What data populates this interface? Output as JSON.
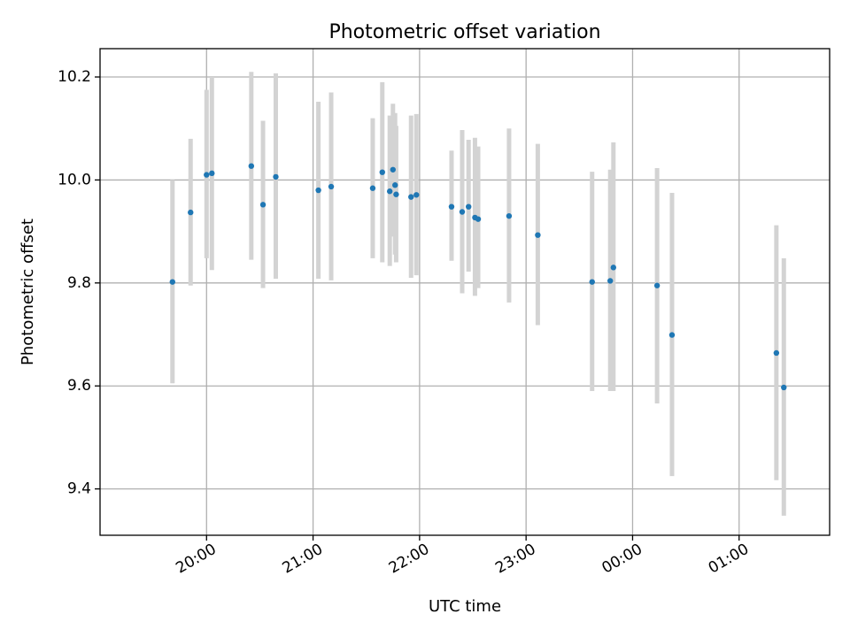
{
  "chart_data": {
    "type": "scatter",
    "title": "Photometric offset variation",
    "xlabel": "UTC time",
    "ylabel": "Photometric offset",
    "x_unit": "UTC time, hours after 19:00 (values past 24 are after midnight)",
    "xlim": [
      19.0,
      25.85
    ],
    "ylim": [
      9.31,
      10.255
    ],
    "grid": true,
    "x_ticks": [
      {
        "value": 20,
        "label": "20:00"
      },
      {
        "value": 21,
        "label": "21:00"
      },
      {
        "value": 22,
        "label": "22:00"
      },
      {
        "value": 23,
        "label": "23:00"
      },
      {
        "value": 24,
        "label": "00:00"
      },
      {
        "value": 25,
        "label": "01:00"
      }
    ],
    "y_ticks": [
      {
        "value": 9.4,
        "label": "9.4"
      },
      {
        "value": 9.6,
        "label": "9.6"
      },
      {
        "value": 9.8,
        "label": "9.8"
      },
      {
        "value": 10.0,
        "label": "10.0"
      },
      {
        "value": 10.2,
        "label": "10.2"
      }
    ],
    "point_color": "#1f77b4",
    "errorbar_color": "#d3d3d3",
    "series": [
      {
        "points": [
          {
            "x": 19.68,
            "y": 9.802,
            "lo": 9.605,
            "hi": 10.0
          },
          {
            "x": 19.85,
            "y": 9.937,
            "lo": 9.795,
            "hi": 10.08
          },
          {
            "x": 20.0,
            "y": 10.01,
            "lo": 9.848,
            "hi": 10.175
          },
          {
            "x": 20.05,
            "y": 10.013,
            "lo": 9.825,
            "hi": 10.2
          },
          {
            "x": 20.42,
            "y": 10.027,
            "lo": 9.845,
            "hi": 10.21
          },
          {
            "x": 20.53,
            "y": 9.952,
            "lo": 9.79,
            "hi": 10.115
          },
          {
            "x": 20.65,
            "y": 10.006,
            "lo": 9.808,
            "hi": 10.207
          },
          {
            "x": 21.05,
            "y": 9.98,
            "lo": 9.808,
            "hi": 10.152
          },
          {
            "x": 21.17,
            "y": 9.987,
            "lo": 9.805,
            "hi": 10.17
          },
          {
            "x": 21.56,
            "y": 9.984,
            "lo": 9.848,
            "hi": 10.12
          },
          {
            "x": 21.65,
            "y": 10.015,
            "lo": 9.84,
            "hi": 10.19
          },
          {
            "x": 21.72,
            "y": 9.978,
            "lo": 9.833,
            "hi": 10.125
          },
          {
            "x": 21.75,
            "y": 10.02,
            "lo": 9.89,
            "hi": 10.148
          },
          {
            "x": 21.77,
            "y": 9.99,
            "lo": 9.855,
            "hi": 10.13
          },
          {
            "x": 21.78,
            "y": 9.972,
            "lo": 9.84,
            "hi": 10.105
          },
          {
            "x": 21.92,
            "y": 9.967,
            "lo": 9.81,
            "hi": 10.125
          },
          {
            "x": 21.97,
            "y": 9.971,
            "lo": 9.815,
            "hi": 10.128
          },
          {
            "x": 22.3,
            "y": 9.948,
            "lo": 9.843,
            "hi": 10.057
          },
          {
            "x": 22.4,
            "y": 9.938,
            "lo": 9.78,
            "hi": 10.097
          },
          {
            "x": 22.46,
            "y": 9.948,
            "lo": 9.822,
            "hi": 10.078
          },
          {
            "x": 22.52,
            "y": 9.927,
            "lo": 9.775,
            "hi": 10.082
          },
          {
            "x": 22.55,
            "y": 9.924,
            "lo": 9.79,
            "hi": 10.065
          },
          {
            "x": 22.84,
            "y": 9.93,
            "lo": 9.762,
            "hi": 10.1
          },
          {
            "x": 23.11,
            "y": 9.893,
            "lo": 9.718,
            "hi": 10.07
          },
          {
            "x": 23.62,
            "y": 9.802,
            "lo": 9.59,
            "hi": 10.016
          },
          {
            "x": 23.79,
            "y": 9.804,
            "lo": 9.59,
            "hi": 10.02
          },
          {
            "x": 23.82,
            "y": 9.83,
            "lo": 9.59,
            "hi": 10.073
          },
          {
            "x": 24.23,
            "y": 9.795,
            "lo": 9.566,
            "hi": 10.023
          },
          {
            "x": 24.37,
            "y": 9.699,
            "lo": 9.425,
            "hi": 9.975
          },
          {
            "x": 25.35,
            "y": 9.664,
            "lo": 9.417,
            "hi": 9.912
          },
          {
            "x": 25.42,
            "y": 9.597,
            "lo": 9.348,
            "hi": 9.848
          }
        ]
      }
    ]
  }
}
